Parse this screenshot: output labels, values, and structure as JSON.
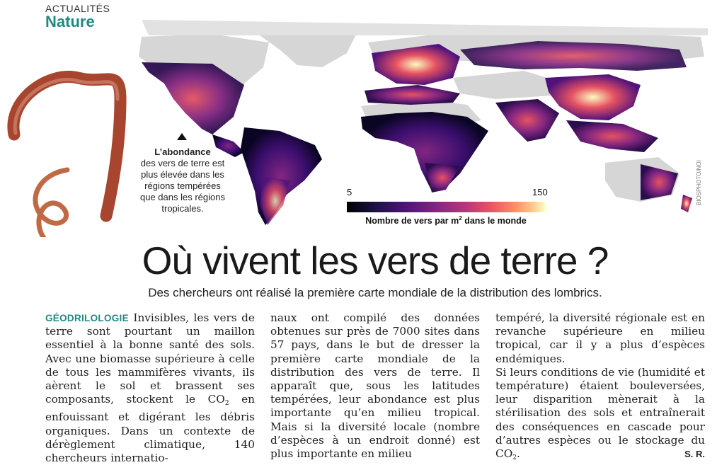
{
  "header": {
    "kicker": "ACTUALITÉS",
    "rubric": "Nature"
  },
  "map": {
    "photo_credit": "BIOSPHOTO/NOI",
    "caption_lead": "L’abondance",
    "caption_body": "des vers de terre est plus élevée dans les régions tempérées que dans les régions tropicales.",
    "legend": {
      "min": "5",
      "max": "150",
      "label": "Nombre de vers par m",
      "label_sup": "2",
      "label_tail": " dans le monde"
    },
    "colors": {
      "land": "#d6d6d6",
      "scale_low": "#000004",
      "scale_mid": "#b73779",
      "scale_high": "#fcfdbf"
    }
  },
  "article": {
    "headline": "Où vivent les vers de terre ?",
    "subhead": "Des chercheurs ont réalisé la première carte mondiale de la distribution des lombrics.",
    "col1": {
      "lead": "GÉODRILOLOGIE",
      "p1": " Invisibles, les vers de terre sont pourtant un maillon essentiel à la bonne santé des sols. Avec une biomasse supérieure à celle de tous les mammifères vivants, ils aèrent le sol et brassent ses composants, stockent le CO",
      "p1_sub": "2",
      "p1_tail": " en enfouissant et digérant les débris organiques. Dans un contexte de dérèglement climatique, 140 chercheurs internatio-"
    },
    "col2": {
      "text": "naux ont compilé des données obtenues sur près de 7000 sites dans 57 pays, dans le but de dresser la première carte mondiale de la distribution des vers de terre. Il apparaît que, sous les latitudes tempérées, leur abondance est plus importante qu’en milieu tropical. Mais si la diversité locale (nombre d’espèces à un endroit donné) est plus importante en milieu"
    },
    "col3": {
      "p1": "tempéré, la diversité régionale est en revanche supérieure en milieu tropical, car il y a plus d’espèces endémiques.",
      "p2": "Si leurs conditions de vie (humidité et température) étaient bouleversées, leur disparition mènerait à la stérilisation des sols et entraînerait des conséquences en cascade pour d’autres espèces ou le stockage du CO",
      "p2_sub": "2",
      "p2_tail": ".",
      "signature": "S. R."
    }
  }
}
